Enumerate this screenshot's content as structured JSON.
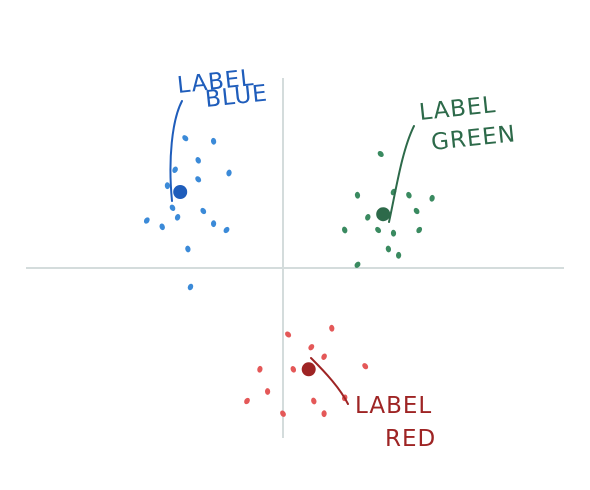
{
  "chart_data": {
    "type": "scatter",
    "title": "",
    "xlabel": "",
    "ylabel": "",
    "xlim": [
      -10,
      10
    ],
    "ylim": [
      -6,
      6
    ],
    "grid": false,
    "axes": "crosshair-through-origin",
    "series": [
      {
        "name": "",
        "color": "#3b8ad8",
        "centroid_color": "#1f5dbb",
        "centroid": [
          -4,
          2.4
        ],
        "label_lines": [
          "LABEL",
          "BLUE"
        ],
        "label_color": "#1f5dbb",
        "points": [
          [
            -3.8,
            4.1
          ],
          [
            -2.7,
            4.0
          ],
          [
            -4.2,
            3.1
          ],
          [
            -3.3,
            3.4
          ],
          [
            -2.1,
            3.0
          ],
          [
            -3.3,
            2.8
          ],
          [
            -4.5,
            2.6
          ],
          [
            -5.3,
            1.5
          ],
          [
            -4.7,
            1.3
          ],
          [
            -4.1,
            1.6
          ],
          [
            -3.1,
            1.8
          ],
          [
            -2.7,
            1.4
          ],
          [
            -2.2,
            1.2
          ],
          [
            -3.7,
            0.6
          ],
          [
            -3.6,
            -0.6
          ],
          [
            -4.3,
            1.9
          ]
        ]
      },
      {
        "name": "",
        "color": "#3a8a60",
        "centroid_color": "#2d6a4a",
        "centroid": [
          3.9,
          1.7
        ],
        "label_lines": [
          "LABEL",
          "GREEN"
        ],
        "label_color": "#2d6a4a",
        "points": [
          [
            3.8,
            3.6
          ],
          [
            2.9,
            2.3
          ],
          [
            4.3,
            2.4
          ],
          [
            4.9,
            2.3
          ],
          [
            5.8,
            2.2
          ],
          [
            3.7,
            1.2
          ],
          [
            4.3,
            1.1
          ],
          [
            5.3,
            1.2
          ],
          [
            2.4,
            1.2
          ],
          [
            3.3,
            1.6
          ],
          [
            5.2,
            1.8
          ],
          [
            4.5,
            0.4
          ],
          [
            2.9,
            0.1
          ],
          [
            4.1,
            0.6
          ]
        ]
      },
      {
        "name": "",
        "color": "#e45858",
        "centroid_color": "#9e2424",
        "centroid": [
          1.0,
          -3.2
        ],
        "label_lines": [
          "LABEL",
          "RED"
        ],
        "label_color": "#9e2424",
        "points": [
          [
            0.2,
            -2.1
          ],
          [
            1.9,
            -1.9
          ],
          [
            1.6,
            -2.8
          ],
          [
            0.4,
            -3.2
          ],
          [
            -0.9,
            -3.2
          ],
          [
            3.2,
            -3.1
          ],
          [
            -0.6,
            -3.9
          ],
          [
            -1.4,
            -4.2
          ],
          [
            1.2,
            -4.2
          ],
          [
            2.4,
            -4.1
          ],
          [
            0.0,
            -4.6
          ],
          [
            1.6,
            -4.6
          ],
          [
            1.1,
            -2.5
          ]
        ]
      }
    ]
  }
}
